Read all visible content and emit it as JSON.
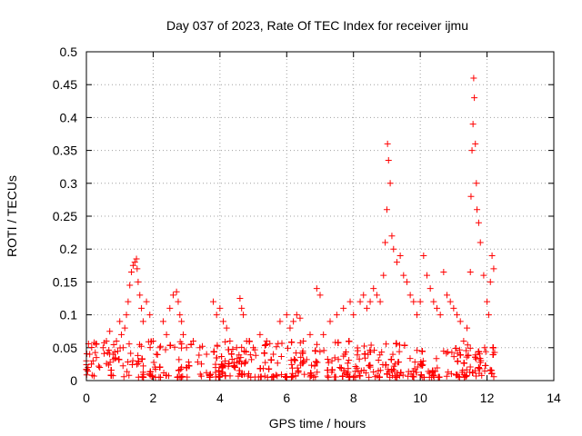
{
  "chart_data": {
    "type": "scatter",
    "title": "Day 037 of 2023, Rate Of TEC Index for receiver ijmu",
    "xlabel": "GPS time / hours",
    "ylabel": "ROTI / TECUs",
    "xlim": [
      0,
      14
    ],
    "ylim": [
      0,
      0.5
    ],
    "x_ticks": [
      "0",
      "2",
      "4",
      "6",
      "8",
      "10",
      "12",
      "14"
    ],
    "y_ticks": [
      "0",
      "0.05",
      "0.1",
      "0.15",
      "0.2",
      "0.25",
      "0.3",
      "0.35",
      "0.4",
      "0.45",
      "0.5"
    ],
    "grid": true,
    "marker": "+",
    "color": "#ff0000",
    "series": [
      {
        "name": "ROTI",
        "x": [
          0.0,
          0.05,
          0.1,
          0.15,
          0.2,
          0.3,
          0.4,
          0.5,
          0.6,
          0.7,
          0.8,
          0.9,
          1.0,
          1.05,
          1.1,
          1.15,
          1.2,
          1.25,
          1.3,
          1.35,
          1.4,
          1.45,
          1.5,
          1.52,
          1.55,
          1.6,
          1.65,
          1.7,
          1.8,
          1.9,
          2.0,
          2.1,
          2.2,
          2.3,
          2.4,
          2.5,
          2.6,
          2.7,
          2.75,
          2.8,
          2.85,
          2.9,
          3.0,
          3.2,
          3.4,
          3.6,
          3.8,
          3.9,
          4.0,
          4.1,
          4.2,
          4.3,
          4.5,
          4.6,
          4.65,
          4.7,
          4.8,
          5.0,
          5.2,
          5.4,
          5.6,
          5.8,
          6.0,
          6.1,
          6.2,
          6.3,
          6.4,
          6.5,
          6.7,
          6.9,
          7.0,
          7.1,
          7.3,
          7.5,
          7.7,
          7.9,
          8.0,
          8.2,
          8.3,
          8.4,
          8.5,
          8.6,
          8.7,
          8.8,
          8.9,
          8.95,
          9.0,
          9.02,
          9.05,
          9.1,
          9.15,
          9.2,
          9.3,
          9.4,
          9.5,
          9.6,
          9.7,
          9.8,
          9.9,
          10.0,
          10.1,
          10.2,
          10.3,
          10.4,
          10.5,
          10.6,
          10.7,
          10.8,
          10.9,
          11.0,
          11.1,
          11.2,
          11.3,
          11.4,
          11.5,
          11.52,
          11.55,
          11.58,
          11.6,
          11.62,
          11.65,
          11.68,
          11.7,
          11.75,
          11.8,
          11.9,
          12.0,
          12.05,
          12.1,
          12.15,
          12.2
        ],
        "y": [
          0.03,
          0.02,
          0.04,
          0.025,
          0.03,
          0.035,
          0.02,
          0.05,
          0.06,
          0.075,
          0.04,
          0.06,
          0.09,
          0.07,
          0.05,
          0.08,
          0.1,
          0.12,
          0.145,
          0.165,
          0.175,
          0.18,
          0.185,
          0.17,
          0.15,
          0.13,
          0.11,
          0.09,
          0.12,
          0.1,
          0.06,
          0.04,
          0.05,
          0.09,
          0.07,
          0.11,
          0.13,
          0.135,
          0.12,
          0.1,
          0.09,
          0.07,
          0.05,
          0.06,
          0.05,
          0.04,
          0.12,
          0.1,
          0.11,
          0.09,
          0.08,
          0.06,
          0.05,
          0.125,
          0.11,
          0.1,
          0.06,
          0.05,
          0.07,
          0.06,
          0.04,
          0.09,
          0.1,
          0.08,
          0.09,
          0.1,
          0.095,
          0.06,
          0.07,
          0.14,
          0.13,
          0.07,
          0.09,
          0.1,
          0.11,
          0.12,
          0.1,
          0.12,
          0.13,
          0.11,
          0.12,
          0.14,
          0.13,
          0.12,
          0.16,
          0.21,
          0.26,
          0.36,
          0.335,
          0.3,
          0.22,
          0.2,
          0.18,
          0.19,
          0.16,
          0.15,
          0.13,
          0.12,
          0.1,
          0.12,
          0.19,
          0.16,
          0.14,
          0.12,
          0.11,
          0.1,
          0.165,
          0.13,
          0.12,
          0.11,
          0.1,
          0.09,
          0.06,
          0.08,
          0.165,
          0.28,
          0.35,
          0.39,
          0.46,
          0.43,
          0.36,
          0.3,
          0.26,
          0.24,
          0.21,
          0.16,
          0.12,
          0.1,
          0.15,
          0.19,
          0.17
        ]
      }
    ],
    "noise_band": {
      "description": "dense cluster of low ROTI values along bottom of plot",
      "x_range": [
        0,
        12.25
      ],
      "y_range": [
        0.005,
        0.06
      ]
    }
  }
}
